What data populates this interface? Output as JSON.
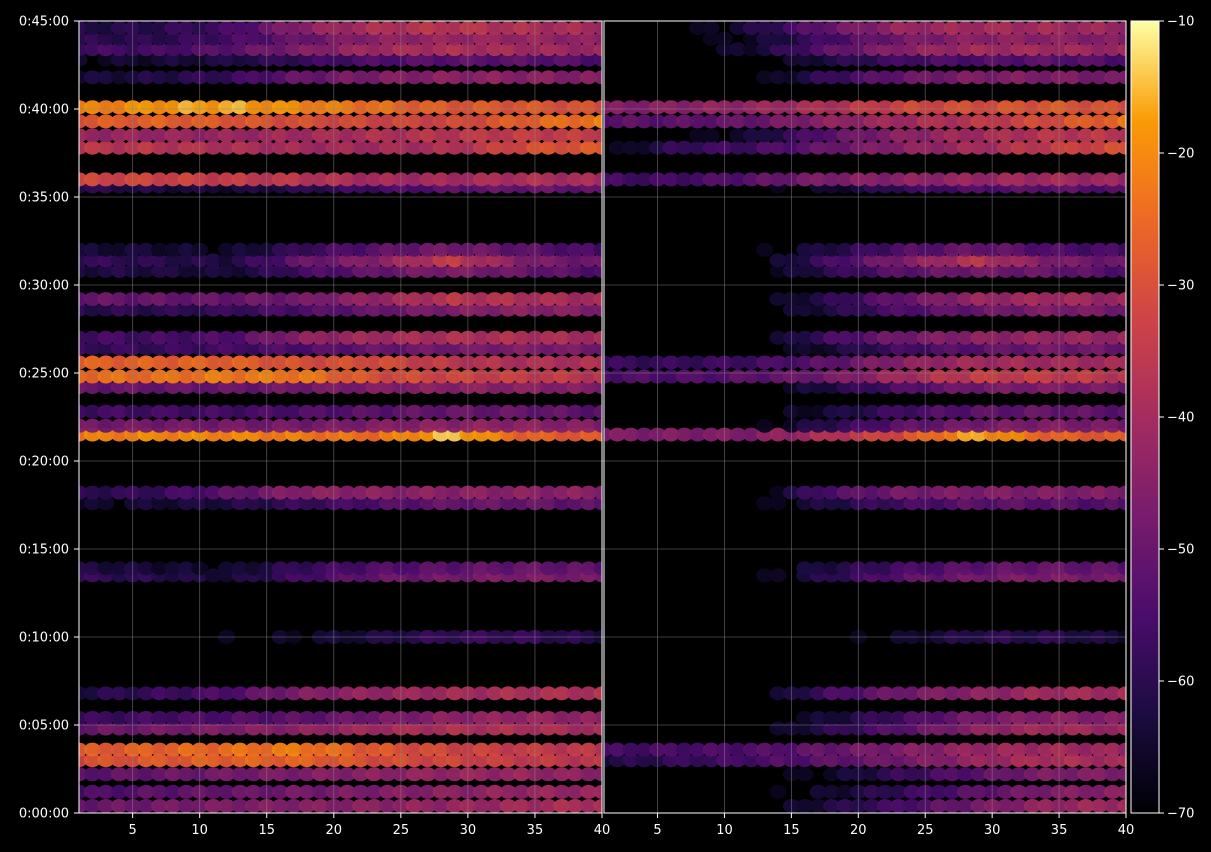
{
  "chart_data": {
    "type": "heatmap",
    "panels": [
      {
        "name": "",
        "x_range": [
          1,
          40
        ],
        "x_ticks": [
          "5",
          "10",
          "15",
          "20",
          "25",
          "30",
          "35",
          "40"
        ],
        "x_tick_values": [
          5,
          10,
          15,
          20,
          25,
          30,
          35,
          40
        ]
      },
      {
        "name": "",
        "x_range": [
          1,
          40
        ],
        "x_ticks": [
          "5",
          "10",
          "15",
          "20",
          "25",
          "30",
          "35",
          "40"
        ],
        "x_tick_values": [
          5,
          10,
          15,
          20,
          25,
          30,
          35,
          40
        ]
      }
    ],
    "y_ticks": [
      "0:00:00",
      "0:05:00",
      "0:10:00",
      "0:15:00",
      "0:20:00",
      "0:25:00",
      "0:30:00",
      "0:35:00",
      "0:40:00",
      "0:45:00"
    ],
    "y_tick_values": [
      0,
      5,
      10,
      15,
      20,
      25,
      30,
      35,
      40,
      45
    ],
    "y_range_minutes": [
      0,
      45
    ],
    "grid": true,
    "colormap": "inferno",
    "colorbar": {
      "ticks": [
        "−10",
        "−20",
        "−30",
        "−40",
        "−50",
        "−60",
        "−70"
      ],
      "tick_values": [
        -10,
        -20,
        -30,
        -40,
        -50,
        -60,
        -70
      ],
      "range": [
        -70,
        -10
      ]
    },
    "bands": [
      {
        "t": 0.4,
        "left": [
          -50,
          -48,
          -46,
          -45,
          -44,
          -42,
          -40,
          -38
        ],
        "right": [
          -70,
          -70,
          -70,
          -62,
          -55,
          -48,
          -42,
          -40
        ]
      },
      {
        "t": 1.2,
        "left": [
          -55,
          -52,
          -50,
          -48,
          -46,
          -44,
          -42,
          -42
        ],
        "right": [
          -70,
          -70,
          -70,
          -65,
          -58,
          -52,
          -46,
          -44
        ]
      },
      {
        "t": 2.2,
        "left": [
          -52,
          -50,
          -48,
          -46,
          -44,
          -42,
          -42,
          -44
        ],
        "right": [
          -70,
          -70,
          -70,
          -66,
          -58,
          -52,
          -46,
          -46
        ]
      },
      {
        "t": 3.0,
        "left": [
          -30,
          -28,
          -26,
          -26,
          -30,
          -32,
          -34,
          -36
        ],
        "right": [
          -62,
          -58,
          -55,
          -52,
          -48,
          -42,
          -38,
          -40
        ]
      },
      {
        "t": 3.6,
        "left": [
          -28,
          -26,
          -24,
          -22,
          -28,
          -32,
          -34,
          -36
        ],
        "right": [
          -56,
          -55,
          -54,
          -50,
          -46,
          -42,
          -40,
          -42
        ]
      },
      {
        "t": 4.8,
        "left": [
          -50,
          -48,
          -46,
          -44,
          -40,
          -38,
          -38,
          -40
        ],
        "right": [
          -70,
          -70,
          -70,
          -60,
          -52,
          -44,
          -40,
          -42
        ]
      },
      {
        "t": 5.4,
        "left": [
          -58,
          -56,
          -54,
          -52,
          -48,
          -44,
          -42,
          -44
        ],
        "right": [
          -70,
          -70,
          -70,
          -64,
          -56,
          -48,
          -44,
          -46
        ]
      },
      {
        "t": 6.8,
        "left": [
          -62,
          -58,
          -54,
          -46,
          -42,
          -40,
          -38,
          -38
        ],
        "right": [
          -70,
          -70,
          -70,
          -56,
          -48,
          -44,
          -40,
          -40
        ]
      },
      {
        "t": 10.0,
        "left": [
          -70,
          -70,
          -68,
          -66,
          -62,
          -58,
          -58,
          -62
        ],
        "right": [
          -70,
          -70,
          -70,
          -70,
          -66,
          -60,
          -60,
          -64
        ]
      },
      {
        "t": 13.5,
        "left": [
          -58,
          -60,
          -64,
          -56,
          -50,
          -48,
          -46,
          -48
        ],
        "right": [
          -70,
          -70,
          -70,
          -60,
          -52,
          -48,
          -46,
          -48
        ]
      },
      {
        "t": 13.9,
        "left": [
          -62,
          -64,
          -66,
          -58,
          -54,
          -52,
          -50,
          -52
        ],
        "right": [
          -70,
          -70,
          -70,
          -62,
          -56,
          -52,
          -50,
          -52
        ]
      },
      {
        "t": 17.6,
        "left": [
          -66,
          -64,
          -62,
          -58,
          -54,
          -50,
          -50,
          -52
        ],
        "right": [
          -70,
          -70,
          -70,
          -62,
          -56,
          -52,
          -52,
          -54
        ]
      },
      {
        "t": 18.2,
        "left": [
          -60,
          -58,
          -52,
          -44,
          -44,
          -44,
          -44,
          -44
        ],
        "right": [
          -70,
          -70,
          -70,
          -54,
          -48,
          -46,
          -46,
          -46
        ]
      },
      {
        "t": 21.5,
        "left": [
          -22,
          -20,
          -20,
          -22,
          -24,
          -14,
          -26,
          -28
        ],
        "right": [
          -46,
          -46,
          -46,
          -38,
          -30,
          -16,
          -26,
          -28
        ]
      },
      {
        "t": 22.0,
        "left": [
          -48,
          -48,
          -48,
          -48,
          -46,
          -44,
          -44,
          -46
        ],
        "right": [
          -70,
          -70,
          -70,
          -60,
          -52,
          -48,
          -46,
          -48
        ]
      },
      {
        "t": 22.8,
        "left": [
          -56,
          -56,
          -56,
          -54,
          -52,
          -50,
          -50,
          -52
        ],
        "right": [
          -70,
          -70,
          -70,
          -64,
          -56,
          -52,
          -50,
          -52
        ]
      },
      {
        "t": 24.2,
        "left": [
          -50,
          -50,
          -50,
          -48,
          -46,
          -44,
          -44,
          -46
        ],
        "right": [
          -70,
          -70,
          -70,
          -62,
          -54,
          -48,
          -46,
          -48
        ]
      },
      {
        "t": 24.8,
        "left": [
          -24,
          -24,
          -22,
          -22,
          -30,
          -32,
          -34,
          -36
        ],
        "right": [
          -54,
          -54,
          -52,
          -48,
          -40,
          -34,
          -34,
          -36
        ]
      },
      {
        "t": 25.6,
        "left": [
          -26,
          -26,
          -26,
          -30,
          -30,
          -36,
          -38,
          -38
        ],
        "right": [
          -58,
          -58,
          -56,
          -52,
          -44,
          -40,
          -40,
          -40
        ]
      },
      {
        "t": 26.4,
        "left": [
          -58,
          -58,
          -56,
          -54,
          -50,
          -48,
          -46,
          -48
        ],
        "right": [
          -70,
          -70,
          -70,
          -64,
          -56,
          -52,
          -48,
          -50
        ]
      },
      {
        "t": 27.0,
        "left": [
          -56,
          -56,
          -54,
          -44,
          -40,
          -38,
          -38,
          -40
        ],
        "right": [
          -70,
          -70,
          -70,
          -56,
          -48,
          -44,
          -42,
          -42
        ]
      },
      {
        "t": 28.6,
        "left": [
          -60,
          -60,
          -58,
          -54,
          -50,
          -46,
          -44,
          -46
        ],
        "right": [
          -70,
          -70,
          -70,
          -62,
          -54,
          -50,
          -46,
          -48
        ]
      },
      {
        "t": 29.2,
        "left": [
          -50,
          -50,
          -50,
          -48,
          -42,
          -36,
          -38,
          -40
        ],
        "right": [
          -70,
          -70,
          -70,
          -60,
          -50,
          -42,
          -40,
          -42
        ]
      },
      {
        "t": 30.8,
        "left": [
          -62,
          -62,
          -64,
          -56,
          -50,
          -46,
          -50,
          -54
        ],
        "right": [
          -70,
          -70,
          -70,
          -60,
          -52,
          -48,
          -50,
          -54
        ]
      },
      {
        "t": 31.4,
        "left": [
          -58,
          -60,
          -62,
          -50,
          -44,
          -34,
          -46,
          -50
        ],
        "right": [
          -70,
          -70,
          -70,
          -56,
          -46,
          -36,
          -46,
          -50
        ]
      },
      {
        "t": 32.0,
        "left": [
          -64,
          -64,
          -66,
          -58,
          -52,
          -48,
          -52,
          -56
        ],
        "right": [
          -70,
          -70,
          -70,
          -62,
          -54,
          -50,
          -54,
          -56
        ]
      },
      {
        "t": 35.6,
        "left": [
          -60,
          -62,
          -64,
          -60,
          -56,
          -52,
          -50,
          -52
        ],
        "right": [
          -70,
          -70,
          -70,
          -66,
          -58,
          -54,
          -52,
          -54
        ]
      },
      {
        "t": 36.0,
        "left": [
          -32,
          -32,
          -34,
          -36,
          -40,
          -40,
          -38,
          -40
        ],
        "right": [
          -56,
          -56,
          -52,
          -46,
          -44,
          -42,
          -40,
          -42
        ]
      },
      {
        "t": 37.8,
        "left": [
          -36,
          -36,
          -38,
          -40,
          -40,
          -38,
          -30,
          -28
        ],
        "right": [
          -70,
          -58,
          -56,
          -50,
          -44,
          -40,
          -34,
          -30
        ]
      },
      {
        "t": 38.5,
        "left": [
          -42,
          -42,
          -42,
          -40,
          -38,
          -36,
          -34,
          -34
        ],
        "right": [
          -70,
          -70,
          -64,
          -52,
          -44,
          -40,
          -36,
          -36
        ]
      },
      {
        "t": 39.3,
        "left": [
          -28,
          -26,
          -28,
          -30,
          -32,
          -32,
          -26,
          -22
        ],
        "right": [
          -52,
          -52,
          -50,
          -44,
          -40,
          -36,
          -30,
          -24
        ]
      },
      {
        "t": 40.1,
        "left": [
          -22,
          -18,
          -16,
          -20,
          -24,
          -28,
          -28,
          -30
        ],
        "right": [
          -46,
          -44,
          -42,
          -38,
          -32,
          -30,
          -28,
          -30
        ]
      },
      {
        "t": 41.8,
        "left": [
          -64,
          -62,
          -58,
          -50,
          -46,
          -44,
          -44,
          -46
        ],
        "right": [
          -70,
          -70,
          -70,
          -58,
          -50,
          -46,
          -46,
          -48
        ]
      },
      {
        "t": 42.8,
        "left": [
          -66,
          -64,
          -62,
          -58,
          -54,
          -52,
          -52,
          -54
        ],
        "right": [
          -70,
          -70,
          -70,
          -62,
          -56,
          -54,
          -52,
          -54
        ]
      },
      {
        "t": 43.4,
        "left": [
          -56,
          -56,
          -52,
          -46,
          -40,
          -38,
          -40,
          -42
        ],
        "right": [
          -70,
          -70,
          -64,
          -52,
          -44,
          -40,
          -40,
          -42
        ]
      },
      {
        "t": 44.0,
        "left": [
          -60,
          -60,
          -56,
          -50,
          -44,
          -42,
          -42,
          -44
        ],
        "right": [
          -70,
          -70,
          -66,
          -56,
          -48,
          -44,
          -44,
          -46
        ]
      },
      {
        "t": 44.6,
        "left": [
          -62,
          -60,
          -56,
          -44,
          -38,
          -36,
          -38,
          -40
        ],
        "right": [
          -70,
          -70,
          -62,
          -50,
          -42,
          -40,
          -40,
          -42
        ]
      }
    ]
  }
}
